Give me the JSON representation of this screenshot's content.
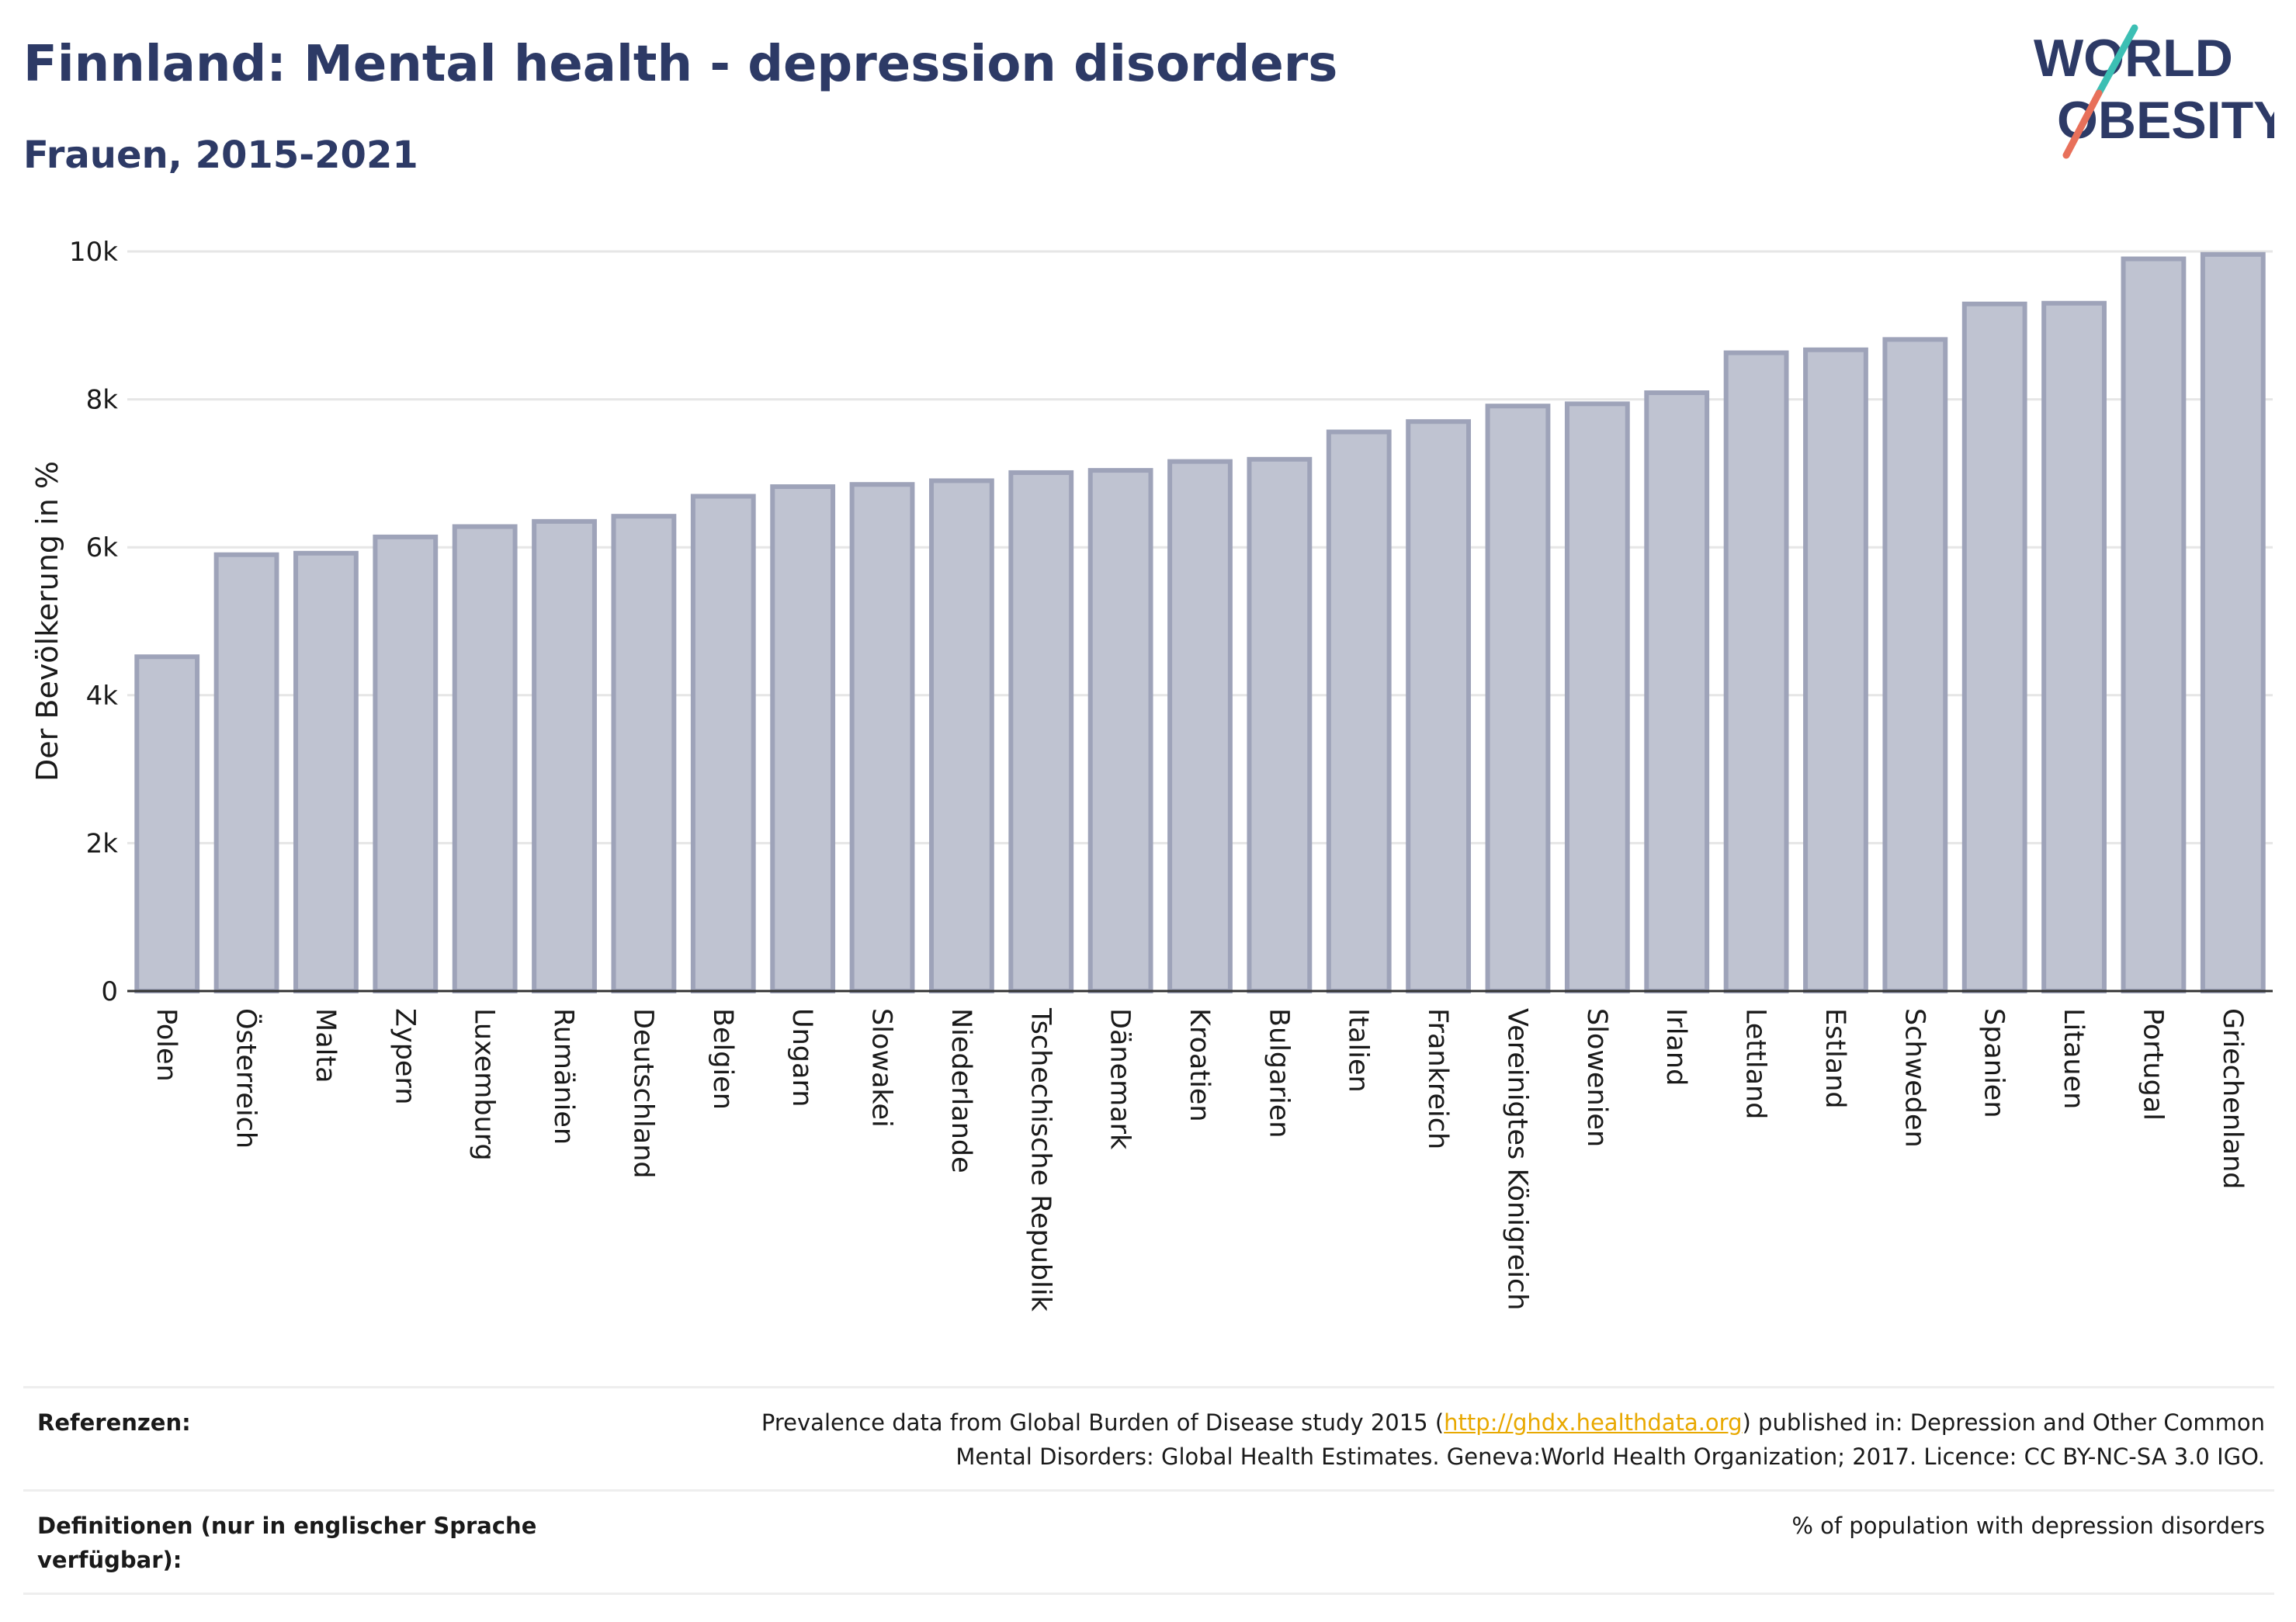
{
  "header": {
    "title": "Finnland: Mental health - depression disorders",
    "subtitle": "Frauen, 2015-2021"
  },
  "logo": {
    "line1": "WORLD",
    "line2": "OBESITY",
    "colors": {
      "text": "#2d3a66",
      "slash_teal": "#3cbfb4",
      "slash_coral": "#e8705a"
    }
  },
  "colors": {
    "bar_fill": "#bfc3d1",
    "bar_stroke": "#9ea3b9",
    "title": "#2d3a66",
    "link": "#e8a800",
    "grid": "#e6e6e6"
  },
  "chart_data": {
    "type": "bar",
    "ylabel": "Der Bevölkerung in %",
    "xlabel": "",
    "ylim": [
      0,
      10000
    ],
    "yticks": [
      0,
      2000,
      4000,
      6000,
      8000,
      10000
    ],
    "ytick_labels": [
      "0",
      "2k",
      "4k",
      "6k",
      "8k",
      "10k"
    ],
    "grid": true,
    "categories": [
      "Polen",
      "Österreich",
      "Malta",
      "Zypern",
      "Luxemburg",
      "Rumänien",
      "Deutschland",
      "Belgien",
      "Ungarn",
      "Slowakei",
      "Niederlande",
      "Tschechische Republik",
      "Dänemark",
      "Kroatien",
      "Bulgarien",
      "Italien",
      "Frankreich",
      "Vereinigtes Königreich",
      "Slowenien",
      "Irland",
      "Lettland",
      "Estland",
      "Schweden",
      "Spanien",
      "Litauen",
      "Portugal",
      "Griechenland"
    ],
    "values": [
      4520,
      5900,
      5920,
      6140,
      6280,
      6350,
      6420,
      6690,
      6820,
      6850,
      6900,
      7010,
      7040,
      7160,
      7190,
      7560,
      7700,
      7910,
      7940,
      8090,
      8630,
      8670,
      8810,
      9290,
      9300,
      9900,
      9960
    ]
  },
  "references": {
    "label": "Referenzen:",
    "text_before": "Prevalence data from Global Burden of Disease study 2015 (",
    "link": "http://ghdx.healthdata.org",
    "text_after": ") published in: Depression and Other Common",
    "line2": "Mental Disorders: Global Health Estimates. Geneva:World Health Organization; 2017. Licence: CC BY-NC-SA 3.0 IGO."
  },
  "definitions": {
    "label": "Definitionen (nur in englischer Sprache verfügbar):",
    "text": "% of population with depression disorders"
  }
}
